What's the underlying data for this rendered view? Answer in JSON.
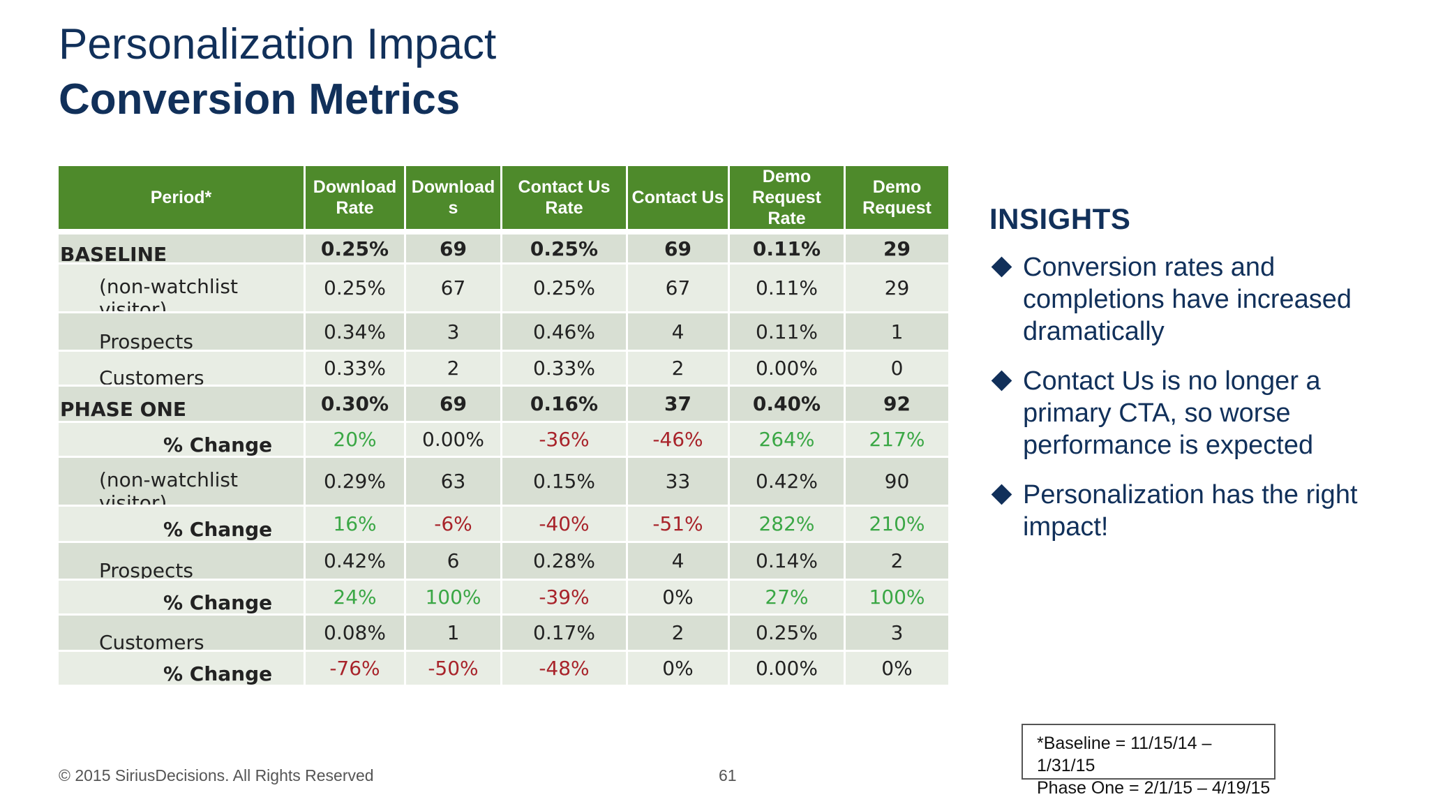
{
  "title": {
    "line1": "Personalization Impact",
    "line2": "Conversion Metrics"
  },
  "table": {
    "headers": [
      "Period*",
      "Download Rate",
      "Download s",
      "Contact Us Rate",
      "Contact Us",
      "Demo Request Rate",
      "Demo Request"
    ],
    "rows": [
      {
        "label": "BASELINE",
        "kind": "head",
        "shade": "dark",
        "h": 48,
        "values": [
          "0.25%",
          "69",
          "0.25%",
          "69",
          "0.11%",
          "29"
        ],
        "tones": [
          "",
          "",
          "",
          "",
          "",
          ""
        ]
      },
      {
        "label": "(non-watchlist visitor)",
        "kind": "sub",
        "shade": "light",
        "h": 70,
        "values": [
          "0.25%",
          "67",
          "0.25%",
          "67",
          "0.11%",
          "29"
        ],
        "tones": [
          "",
          "",
          "",
          "",
          "",
          ""
        ]
      },
      {
        "label": "Prospects",
        "kind": "sub",
        "shade": "dark",
        "h": 55,
        "values": [
          "0.34%",
          "3",
          "0.46%",
          "4",
          "0.11%",
          "1"
        ],
        "tones": [
          "",
          "",
          "",
          "",
          "",
          ""
        ]
      },
      {
        "label": "Customers",
        "kind": "sub",
        "shade": "light",
        "h": 50,
        "values": [
          "0.33%",
          "2",
          "0.33%",
          "2",
          "0.00%",
          "0"
        ],
        "tones": [
          "",
          "",
          "",
          "",
          "",
          ""
        ]
      },
      {
        "label": "PHASE ONE",
        "kind": "head",
        "shade": "dark",
        "h": 52,
        "values": [
          "0.30%",
          "69",
          "0.16%",
          "37",
          "0.40%",
          "92"
        ],
        "tones": [
          "",
          "",
          "",
          "",
          "",
          ""
        ]
      },
      {
        "label": "% Change",
        "kind": "change",
        "shade": "light",
        "h": 50,
        "values": [
          "20%",
          "0.00%",
          "-36%",
          "-46%",
          "264%",
          "217%"
        ],
        "tones": [
          "pos",
          "",
          "neg",
          "neg",
          "pos",
          "pos"
        ]
      },
      {
        "label": "(non-watchlist visitor)",
        "kind": "sub",
        "shade": "dark",
        "h": 70,
        "values": [
          "0.29%",
          "63",
          "0.15%",
          "33",
          "0.42%",
          "90"
        ],
        "tones": [
          "",
          "",
          "",
          "",
          "",
          ""
        ]
      },
      {
        "label": "% Change",
        "kind": "change",
        "shade": "light",
        "h": 52,
        "values": [
          "16%",
          "-6%",
          "-40%",
          "-51%",
          "282%",
          "210%"
        ],
        "tones": [
          "pos",
          "neg",
          "neg",
          "neg",
          "pos",
          "pos"
        ]
      },
      {
        "label": "Prospects",
        "kind": "sub",
        "shade": "dark",
        "h": 54,
        "values": [
          "0.42%",
          "6",
          "0.28%",
          "4",
          "0.14%",
          "2"
        ],
        "tones": [
          "",
          "",
          "",
          "",
          "",
          ""
        ]
      },
      {
        "label": "% Change",
        "kind": "change",
        "shade": "light",
        "h": 50,
        "values": [
          "24%",
          "100%",
          "-39%",
          "0%",
          "27%",
          "100%"
        ],
        "tones": [
          "pos",
          "pos",
          "neg",
          "",
          "pos",
          "pos"
        ]
      },
      {
        "label": "Customers",
        "kind": "sub",
        "shade": "dark",
        "h": 52,
        "values": [
          "0.08%",
          "1",
          "0.17%",
          "2",
          "0.25%",
          "3"
        ],
        "tones": [
          "",
          "",
          "",
          "",
          "",
          ""
        ]
      },
      {
        "label": "% Change",
        "kind": "change",
        "shade": "light",
        "h": 50,
        "values": [
          "-76%",
          "-50%",
          "-48%",
          "0%",
          "0.00%",
          "0%"
        ],
        "tones": [
          "neg",
          "neg",
          "neg",
          "",
          "",
          ""
        ]
      }
    ]
  },
  "insights": {
    "heading": "INSIGHTS",
    "bullets": [
      "Conversion rates and completions have increased dramatically",
      "Contact Us is no longer a primary CTA, so worse performance is expected",
      "Personalization has the right impact!"
    ]
  },
  "footnote": {
    "line1": "*Baseline = 11/15/14 – 1/31/15",
    "line2": "Phase One = 2/1/15 – 4/19/15"
  },
  "footer": {
    "copyright": "© 2015 SiriusDecisions. All Rights Reserved",
    "page": "61"
  },
  "colors": {
    "header_green": "#4e8a2b",
    "title_navy": "#11305a",
    "positive": "#3aa745",
    "negative": "#a8232a"
  }
}
